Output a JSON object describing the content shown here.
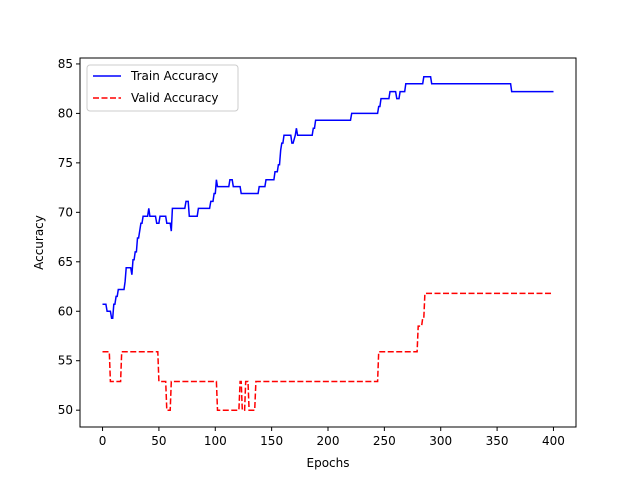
{
  "chart_data": {
    "type": "line",
    "title": "",
    "xlabel": "Epochs",
    "ylabel": "Accuracy",
    "xlim": [
      -20,
      420
    ],
    "ylim": [
      48.3,
      85.6
    ],
    "xticks": [
      0,
      50,
      100,
      150,
      200,
      250,
      300,
      350,
      400
    ],
    "yticks": [
      50,
      55,
      60,
      65,
      70,
      75,
      80,
      85
    ],
    "grid": false,
    "legend_position": "top-left",
    "series": [
      {
        "name": "Train Accuracy",
        "color": "#0000ff",
        "style": "solid",
        "points": [
          [
            0,
            60.7
          ],
          [
            3,
            60.7
          ],
          [
            4,
            60.0
          ],
          [
            7,
            60.0
          ],
          [
            8,
            59.3
          ],
          [
            9,
            59.3
          ],
          [
            10,
            60.7
          ],
          [
            11,
            60.7
          ],
          [
            12,
            61.5
          ],
          [
            13,
            61.5
          ],
          [
            14,
            62.2
          ],
          [
            19,
            62.2
          ],
          [
            20,
            63.0
          ],
          [
            21,
            64.4
          ],
          [
            25,
            64.4
          ],
          [
            26,
            63.7
          ],
          [
            27,
            65.2
          ],
          [
            28,
            65.2
          ],
          [
            29,
            66.0
          ],
          [
            30,
            66.0
          ],
          [
            31,
            67.4
          ],
          [
            32,
            67.4
          ],
          [
            34,
            68.9
          ],
          [
            35,
            68.9
          ],
          [
            36,
            69.6
          ],
          [
            40,
            69.6
          ],
          [
            41,
            70.4
          ],
          [
            42,
            69.6
          ],
          [
            47,
            69.6
          ],
          [
            48,
            68.9
          ],
          [
            50,
            68.9
          ],
          [
            51,
            69.6
          ],
          [
            56,
            69.6
          ],
          [
            57,
            68.9
          ],
          [
            60,
            68.9
          ],
          [
            61,
            68.1
          ],
          [
            62,
            70.4
          ],
          [
            73,
            70.4
          ],
          [
            74,
            71.1
          ],
          [
            76,
            71.1
          ],
          [
            77,
            69.6
          ],
          [
            84,
            69.6
          ],
          [
            85,
            70.4
          ],
          [
            95,
            70.4
          ],
          [
            96,
            71.1
          ],
          [
            98,
            71.1
          ],
          [
            99,
            71.9
          ],
          [
            100,
            71.9
          ],
          [
            101,
            73.3
          ],
          [
            102,
            72.6
          ],
          [
            112,
            72.6
          ],
          [
            113,
            73.3
          ],
          [
            115,
            73.3
          ],
          [
            116,
            72.6
          ],
          [
            122,
            72.6
          ],
          [
            123,
            71.9
          ],
          [
            138,
            71.9
          ],
          [
            139,
            72.6
          ],
          [
            144,
            72.6
          ],
          [
            145,
            73.3
          ],
          [
            152,
            73.3
          ],
          [
            153,
            74.1
          ],
          [
            155,
            74.1
          ],
          [
            156,
            74.8
          ],
          [
            157,
            74.8
          ],
          [
            158,
            76.3
          ],
          [
            159,
            77.0
          ],
          [
            160,
            77.0
          ],
          [
            161,
            77.8
          ],
          [
            167,
            77.8
          ],
          [
            168,
            77.0
          ],
          [
            169,
            77.0
          ],
          [
            171,
            77.8
          ],
          [
            172,
            78.5
          ],
          [
            173,
            77.8
          ],
          [
            186,
            77.8
          ],
          [
            187,
            78.5
          ],
          [
            188,
            78.5
          ],
          [
            189,
            79.3
          ],
          [
            220,
            79.3
          ],
          [
            221,
            80.0
          ],
          [
            244,
            80.0
          ],
          [
            245,
            80.7
          ],
          [
            246,
            80.7
          ],
          [
            247,
            81.5
          ],
          [
            254,
            81.5
          ],
          [
            255,
            82.2
          ],
          [
            260,
            82.2
          ],
          [
            261,
            81.5
          ],
          [
            263,
            81.5
          ],
          [
            264,
            82.2
          ],
          [
            268,
            82.2
          ],
          [
            269,
            83.0
          ],
          [
            284,
            83.0
          ],
          [
            285,
            83.7
          ],
          [
            291,
            83.7
          ],
          [
            292,
            83.0
          ],
          [
            362,
            83.0
          ],
          [
            363,
            82.2
          ],
          [
            400,
            82.2
          ]
        ]
      },
      {
        "name": "Valid Accuracy",
        "color": "#ff0000",
        "style": "dashed",
        "points": [
          [
            0,
            55.9
          ],
          [
            6,
            55.9
          ],
          [
            7,
            52.9
          ],
          [
            16,
            52.9
          ],
          [
            17,
            55.9
          ],
          [
            49,
            55.9
          ],
          [
            50,
            52.9
          ],
          [
            56,
            52.9
          ],
          [
            57,
            50.0
          ],
          [
            60,
            50.0
          ],
          [
            61,
            52.9
          ],
          [
            101,
            52.9
          ],
          [
            102,
            50.0
          ],
          [
            121,
            50.0
          ],
          [
            122,
            52.9
          ],
          [
            123,
            52.9
          ],
          [
            124,
            50.0
          ],
          [
            126,
            50.0
          ],
          [
            127,
            52.9
          ],
          [
            129,
            52.9
          ],
          [
            130,
            50.0
          ],
          [
            135,
            50.0
          ],
          [
            136,
            52.9
          ],
          [
            244,
            52.9
          ],
          [
            245,
            55.9
          ],
          [
            279,
            55.9
          ],
          [
            280,
            58.5
          ],
          [
            283,
            58.5
          ],
          [
            284,
            59.3
          ],
          [
            285,
            59.3
          ],
          [
            286,
            61.8
          ],
          [
            400,
            61.8
          ]
        ]
      }
    ]
  }
}
